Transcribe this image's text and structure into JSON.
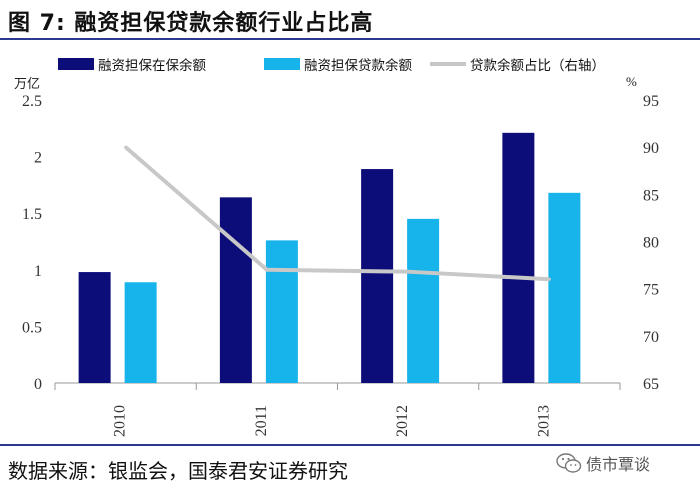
{
  "title": "图 7: 融资担保贷款余额行业占比高",
  "source": "数据来源：银监会，国泰君安证券研究",
  "watermark": "债市覃谈",
  "chart_data": {
    "type": "bar",
    "categories": [
      "2010",
      "2011",
      "2012",
      "2013"
    ],
    "left_axis_unit": "万亿",
    "right_axis_unit": "%",
    "ylim": [
      0,
      2.5
    ],
    "yticks": [
      "0",
      "0.5",
      "1",
      "1.5",
      "2",
      "2.5"
    ],
    "y2lim": [
      65,
      95
    ],
    "y2ticks": [
      "65",
      "70",
      "75",
      "80",
      "85",
      "90",
      "95"
    ],
    "series": [
      {
        "name": "融资担保在保余额",
        "kind": "bar",
        "axis": "left",
        "color": "#0d0d7a",
        "values": [
          0.98,
          1.64,
          1.89,
          2.21
        ]
      },
      {
        "name": "融资担保贷款余额",
        "kind": "bar",
        "axis": "left",
        "color": "#16b4ea",
        "values": [
          0.89,
          1.26,
          1.45,
          1.68
        ]
      },
      {
        "name": "贷款余额占比（右轴）",
        "kind": "line",
        "axis": "right",
        "color": "#c8c8c8",
        "values": [
          90.0,
          77.0,
          76.8,
          76.0
        ]
      }
    ],
    "legend_position": "top"
  }
}
